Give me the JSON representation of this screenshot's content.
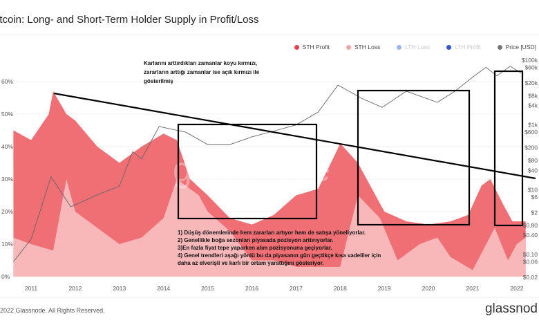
{
  "header": {
    "title": "itcoin: Long- and Short-Term Holder Supply in Profit/Loss"
  },
  "footer": {
    "copyright": "2022 Glassnode. All Rights Reserved.",
    "logo": "glassnod",
    "watermark": "glassnode"
  },
  "annotations": {
    "top_note": [
      "Karlarını arttırdıkları zamanlar koyu kırmızı,",
      "zararların arttığı zamanlar ise açık kırmızı ile",
      "gösterilmiş"
    ],
    "bottom_note": [
      "1) Düşüş dönemlerinde hem zararları artıyor hem de satışa yöneliyorlar.",
      "2) Genellikle boğa sezonları piyasada pozisyon arttırıyorlar.",
      "3)En fazla fiyat tepe yaparken alım pozisyonuna geçiyorlar.",
      "4) Genel trendleri aşağı yönlü bu da piyasanın gün geçtikçe kısa vadeliler için",
      "daha az elverişli ve karlı bir ortam yarattığını gösteriyor."
    ]
  },
  "chart_data": {
    "type": "area",
    "title": "itcoin: Long- and Short-Term Holder Supply in Profit/Loss",
    "legend": [
      {
        "name": "STH Profit",
        "color": "#e8434a",
        "active": true
      },
      {
        "name": "STH Loss",
        "color": "#f5a3a6",
        "active": true
      },
      {
        "name": "LTH Loss",
        "color": "#9fb4f5",
        "active": false
      },
      {
        "name": "LTH Profit",
        "color": "#3356e0",
        "active": false
      },
      {
        "name": "Price [USD]",
        "color": "#777777",
        "active": true
      }
    ],
    "legend_position": "top-right",
    "x_ticks": [
      "2011",
      "2012",
      "2013",
      "2014",
      "2015",
      "2016",
      "2017",
      "2018",
      "2019",
      "2020",
      "2021",
      "2022"
    ],
    "y_left_ticks": [
      "0%",
      "10%",
      "20%",
      "30%",
      "40%",
      "50%",
      "60%"
    ],
    "y_left_range": [
      0,
      62
    ],
    "y_right_ticks": [
      "$0.02",
      "$0.06",
      "$0.10",
      "$0.40",
      "$0.80",
      "$2",
      "$6",
      "$10",
      "$40",
      "$80",
      "$200",
      "$600",
      "$1k",
      "$4k",
      "$8k",
      "$20k",
      "$60k",
      "$100k"
    ],
    "y_right_scale": "log",
    "y_right_range": [
      0.02,
      100000
    ],
    "sth_total_pct": [
      [
        2010.6,
        45
      ],
      [
        2011.0,
        42
      ],
      [
        2011.4,
        50
      ],
      [
        2011.5,
        57
      ],
      [
        2011.8,
        50
      ],
      [
        2012.0,
        48
      ],
      [
        2012.5,
        40
      ],
      [
        2013.0,
        35
      ],
      [
        2013.5,
        40
      ],
      [
        2014.0,
        44
      ],
      [
        2014.3,
        42
      ],
      [
        2014.6,
        30
      ],
      [
        2015.0,
        25
      ],
      [
        2015.5,
        18
      ],
      [
        2016.0,
        16
      ],
      [
        2016.5,
        19
      ],
      [
        2017.0,
        25
      ],
      [
        2017.5,
        27
      ],
      [
        2017.9,
        38
      ],
      [
        2018.0,
        41
      ],
      [
        2018.4,
        35
      ],
      [
        2018.8,
        25
      ],
      [
        2019.0,
        20
      ],
      [
        2019.5,
        17
      ],
      [
        2020.0,
        16
      ],
      [
        2020.5,
        17
      ],
      [
        2020.9,
        19
      ],
      [
        2021.2,
        28
      ],
      [
        2021.4,
        30
      ],
      [
        2021.7,
        22
      ],
      [
        2021.9,
        17
      ],
      [
        2022.2,
        17
      ]
    ],
    "sth_loss_pct": [
      [
        2010.6,
        12
      ],
      [
        2011.0,
        10
      ],
      [
        2011.5,
        8
      ],
      [
        2011.8,
        30
      ],
      [
        2012.0,
        20
      ],
      [
        2012.5,
        15
      ],
      [
        2013.0,
        10
      ],
      [
        2013.5,
        12
      ],
      [
        2014.0,
        18
      ],
      [
        2014.3,
        30
      ],
      [
        2014.8,
        25
      ],
      [
        2015.0,
        20
      ],
      [
        2015.5,
        14
      ],
      [
        2016.0,
        5
      ],
      [
        2016.5,
        5
      ],
      [
        2017.0,
        3
      ],
      [
        2018.0,
        3
      ],
      [
        2018.4,
        25
      ],
      [
        2018.9,
        18
      ],
      [
        2019.3,
        5
      ],
      [
        2019.8,
        10
      ],
      [
        2020.2,
        12
      ],
      [
        2020.5,
        6
      ],
      [
        2021.0,
        2
      ],
      [
        2021.5,
        15
      ],
      [
        2021.8,
        5
      ],
      [
        2022.0,
        10
      ],
      [
        2022.2,
        12
      ]
    ],
    "price_usd": [
      [
        2010.6,
        0.06
      ],
      [
        2011.0,
        0.3
      ],
      [
        2011.45,
        25
      ],
      [
        2011.9,
        3
      ],
      [
        2012.5,
        7
      ],
      [
        2013.0,
        13
      ],
      [
        2013.3,
        150
      ],
      [
        2013.5,
        90
      ],
      [
        2013.9,
        900
      ],
      [
        2014.5,
        600
      ],
      [
        2015.0,
        250
      ],
      [
        2015.5,
        250
      ],
      [
        2016.0,
        430
      ],
      [
        2016.5,
        650
      ],
      [
        2017.0,
        1000
      ],
      [
        2017.5,
        2500
      ],
      [
        2017.95,
        17000
      ],
      [
        2018.5,
        6500
      ],
      [
        2018.95,
        3500
      ],
      [
        2019.5,
        11000
      ],
      [
        2020.2,
        5000
      ],
      [
        2020.6,
        11000
      ],
      [
        2021.0,
        30000
      ],
      [
        2021.3,
        60000
      ],
      [
        2021.55,
        33000
      ],
      [
        2021.85,
        65000
      ],
      [
        2022.1,
        40000
      ]
    ]
  }
}
